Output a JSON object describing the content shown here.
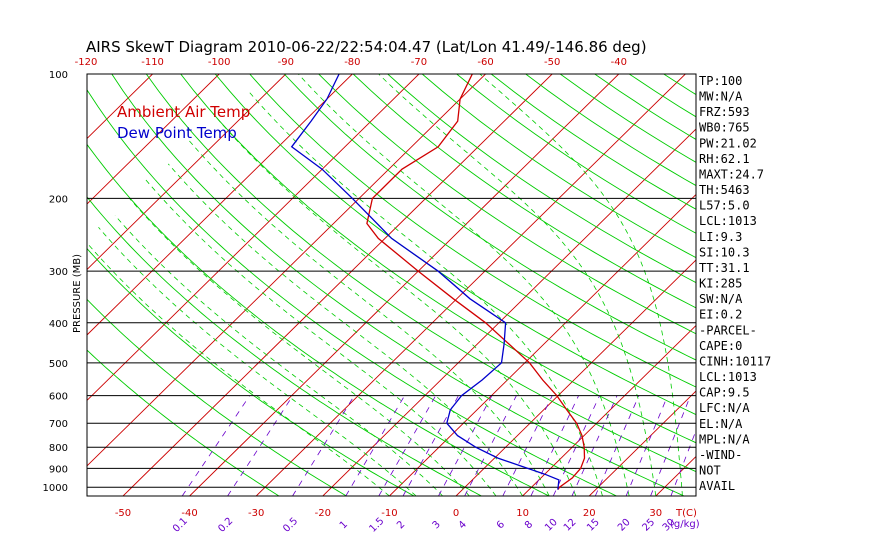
{
  "chart_data": {
    "type": "line",
    "title": "AIRS SkewT Diagram 2010-06-22/22:54:04.47 (Lat/Lon 41.49/-146.86 deg)",
    "ylabel": "PRESSURE (MB)",
    "xlabel": "T(C)",
    "mixing_ratio_unit": "(g/kg)",
    "y_scale": "log",
    "ylim": [
      1050,
      100
    ],
    "xlim_bottom": [
      -53,
      37
    ],
    "pressure_ticks": [
      100,
      200,
      300,
      400,
      500,
      600,
      700,
      800,
      900,
      1000
    ],
    "pressure_tick_labels": [
      "100",
      "200",
      "300",
      "400",
      "500",
      "600",
      "700",
      "800",
      "900",
      "1000"
    ],
    "top_temp_ticks": [
      -120,
      -110,
      -100,
      -90,
      -80,
      -70,
      -60,
      -50,
      -40
    ],
    "top_temp_labels": [
      "-120",
      "-110",
      "-100",
      "-90",
      "-80",
      "-70",
      "-60",
      "-50",
      "-40"
    ],
    "bottom_temp_ticks": [
      -50,
      -40,
      -30,
      -20,
      -10,
      0,
      10,
      20,
      30
    ],
    "bottom_temp_labels": [
      "-50",
      "-40",
      "-30",
      "-20",
      "-10",
      "0",
      "10",
      "20",
      "30"
    ],
    "mixing_ratio_ticks": [
      0.1,
      0.2,
      0.5,
      1,
      1.5,
      2,
      3,
      4,
      6,
      8,
      10,
      12,
      15,
      20,
      25,
      30,
      40
    ],
    "mixing_ratio_labels": [
      "0.1",
      "0.2",
      "0.5",
      "1",
      "1.5",
      "2",
      "3",
      "4",
      "6",
      "8",
      "10",
      "12",
      "15",
      "20",
      "25",
      "30",
      "40"
    ],
    "grid": true,
    "legend_placement": "top-left",
    "colors": {
      "temperature": "#d00000",
      "dewpoint": "#0000cc",
      "isotherm": "#cc0000",
      "dry_adiabat": "#00cc00",
      "moist_adiabat": "#00cc00",
      "mixing_ratio": "#6a00cc",
      "isobar": "#000000",
      "tick_labels": "#cc0000",
      "mixing_labels": "#6a00cc"
    },
    "series": [
      {
        "name": "Ambient Air Temp",
        "pressure": [
          1013,
          1000,
          950,
          900,
          850,
          800,
          750,
          700,
          650,
          600,
          550,
          500,
          450,
          400,
          350,
          300,
          250,
          230,
          200,
          170,
          150,
          130,
          115,
          100
        ],
        "temperature": [
          14.3,
          14.2,
          14.7,
          14.5,
          13.5,
          11.8,
          9.7,
          7.0,
          3.5,
          -0.2,
          -4.7,
          -9.3,
          -15.3,
          -22.0,
          -30.5,
          -40.0,
          -51.0,
          -55.0,
          -58.0,
          -58.0,
          -56.0,
          -57.0,
          -60.0,
          -62.0
        ]
      },
      {
        "name": "Dew Point Temp",
        "pressure": [
          1013,
          1000,
          960,
          930,
          900,
          850,
          800,
          750,
          700,
          650,
          600,
          550,
          500,
          450,
          400,
          350,
          300,
          250,
          200,
          170,
          150,
          130,
          115,
          100
        ],
        "temperature": [
          14.3,
          14.0,
          13.0,
          10.0,
          6.5,
          0.5,
          -4.5,
          -9.0,
          -12.5,
          -14.0,
          -14.5,
          -13.8,
          -13.5,
          -16.0,
          -19.0,
          -28.0,
          -37.0,
          -49.0,
          -61.0,
          -70.0,
          -78.0,
          -79.0,
          -80.0,
          -82.0
        ]
      }
    ],
    "indices": [
      "TP:100",
      "MW:N/A",
      "FRZ:593",
      "WB0:765",
      "PW:21.02",
      "RH:62.1",
      "MAXT:24.7",
      "TH:5463",
      "L57:5.0",
      "LCL:1013",
      "LI:9.3",
      "SI:10.3",
      "TT:31.1",
      "KI:285",
      "SW:N/A",
      "EI:0.2",
      "-PARCEL-",
      "CAPE:0",
      "CINH:10117",
      "LCL:1013",
      "CAP:9.5",
      "LFC:N/A",
      "EL:N/A",
      "MPL:N/A",
      "-WIND-",
      "NOT",
      "AVAIL"
    ]
  }
}
